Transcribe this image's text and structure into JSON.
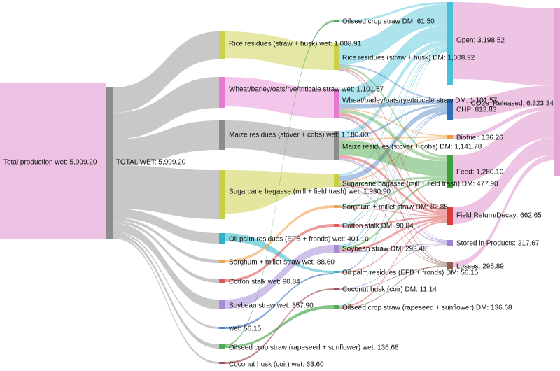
{
  "figure": {
    "background": "#ffffff"
  },
  "colors": {
    "pink_node": "#e5a8d6",
    "pink_link": "#edc1e3",
    "gray_node": "#8c8c8c",
    "gray_link": "#c8c8c8",
    "rice": "#ccd14c",
    "wheat": "#e878d2",
    "sugarcane": "#c9ce42",
    "oilpalm": "#2cb5c8",
    "sorghum": "#f0a355",
    "cotton": "#dd5a56",
    "soybean": "#a88cd8",
    "wet56": "#4d7fc4",
    "oilseed": "#52ab57",
    "coconut": "#a05252",
    "open": "#49c0d8",
    "chp": "#2e6fb7",
    "biofuel": "#f09a3c",
    "feed": "#3da23d",
    "field_return": "#d93e3e",
    "stored": "#a183d4",
    "losses": "#8e6052"
  },
  "labels": {
    "total_production": "Total production wet: 5,999.20",
    "total_wet": "TOTAL WET: 5,999.20",
    "rice_wet": "Rice residues (straw + husk) wet: 1,008.91",
    "wheat_wet": "Wheat/barley/oats/rye/triticale straw wet: 1,101.57",
    "maize_wet": "Maize residues (stover + cobs) wet: 1,180.00",
    "sugarcane_wet": "Sugarcane bagasse (mill + field trash) wet: 1,930.90",
    "oilpalm_wet": "Oil palm residues (EFB + fronds) wet: 401.10",
    "sorghum_wet": "Sorghum + millet straw wet: 88.60",
    "cotton_wet": "Cotton stalk wet: 90.84",
    "soybean_wet": "Soybean straw wet: 357.90",
    "wet56": "wet: 56.15",
    "oilseed_wet": "Oilseed crop straw (rapeseed + sunflower) wet: 136.68",
    "coconut_wet": "Coconut husk (coir) wet: 63.60",
    "oilseed_dm61": "Oilseed crop straw DM: 61.50",
    "rice_dm": "Rice residues (straw + husk) DM: 1,008.92",
    "wheat_dm": "Wheat/barley/oats/rye/triticale straw DM: 1,101.57",
    "maize_dm": "Maize residues (stover + cobs) DM: 1,141.78",
    "sugarcane_dm": "Sugarcane bagasse (mill + field trash) DM: 477.90",
    "sorghum_dm": "Sorghum + millet straw DM: 82.85",
    "cotton_dm": "Cotton stalk DM: 90.84",
    "soybean_dm": "Soybean straw DM: 293.48",
    "oilpalm_dm": "Oil palm residues (EFB + fronds) DM: 56.15",
    "coconut_dm": "Coconut husk (coir) DM: 11.14",
    "oilseed_dm136": "Oilseed crop straw (rapeseed + sunflower) DM: 136.68",
    "open": "Open: 3,198.52",
    "chp": "CHP: 813.83",
    "biofuel": "Biofuel: 136.26",
    "feed": "Feed: 1,280.10",
    "field_return": "Field Return/Decay: 662.65",
    "stored": "Stored in Products: 217.67",
    "losses": "Losses: 295.89",
    "co2e": "CO2e_Released: 6,323.34"
  },
  "chart_data": {
    "type": "sankey",
    "title": "",
    "nodes": [
      {
        "id": "total_production",
        "stage": 1,
        "label": "Total production wet",
        "value": 5999.2
      },
      {
        "id": "total_wet",
        "stage": 2,
        "label": "TOTAL WET",
        "value": 5999.2
      },
      {
        "id": "rice_wet",
        "stage": 3,
        "label": "Rice residues (straw + husk) wet",
        "value": 1008.91
      },
      {
        "id": "wheat_wet",
        "stage": 3,
        "label": "Wheat/barley/oats/rye/triticale straw wet",
        "value": 1101.57
      },
      {
        "id": "maize_wet",
        "stage": 3,
        "label": "Maize residues (stover + cobs) wet",
        "value": 1180.0
      },
      {
        "id": "sugarcane_wet",
        "stage": 3,
        "label": "Sugarcane bagasse (mill + field trash) wet",
        "value": 1930.9
      },
      {
        "id": "oilpalm_wet",
        "stage": 3,
        "label": "Oil palm residues (EFB + fronds) wet",
        "value": 401.1
      },
      {
        "id": "sorghum_wet",
        "stage": 3,
        "label": "Sorghum + millet straw wet",
        "value": 88.6
      },
      {
        "id": "cotton_wet",
        "stage": 3,
        "label": "Cotton stalk wet",
        "value": 90.84
      },
      {
        "id": "soybean_wet",
        "stage": 3,
        "label": "Soybean straw wet",
        "value": 357.9
      },
      {
        "id": "wet56",
        "stage": 3,
        "label": "wet",
        "value": 56.15
      },
      {
        "id": "oilseed_wet",
        "stage": 3,
        "label": "Oilseed crop straw (rapeseed + sunflower) wet",
        "value": 136.68
      },
      {
        "id": "coconut_wet",
        "stage": 3,
        "label": "Coconut husk (coir) wet",
        "value": 63.6
      },
      {
        "id": "oilseed_dm61",
        "stage": 4,
        "label": "Oilseed crop straw DM",
        "value": 61.5
      },
      {
        "id": "rice_dm",
        "stage": 4,
        "label": "Rice residues (straw + husk) DM",
        "value": 1008.92
      },
      {
        "id": "wheat_dm",
        "stage": 4,
        "label": "Wheat/barley/oats/rye/triticale straw DM",
        "value": 1101.57
      },
      {
        "id": "maize_dm",
        "stage": 4,
        "label": "Maize residues (stover + cobs) DM",
        "value": 1141.78
      },
      {
        "id": "sugarcane_dm",
        "stage": 4,
        "label": "Sugarcane bagasse (mill + field trash) DM",
        "value": 477.9
      },
      {
        "id": "sorghum_dm",
        "stage": 4,
        "label": "Sorghum + millet straw DM",
        "value": 82.85
      },
      {
        "id": "cotton_dm",
        "stage": 4,
        "label": "Cotton stalk DM",
        "value": 90.84
      },
      {
        "id": "soybean_dm",
        "stage": 4,
        "label": "Soybean straw DM",
        "value": 293.48
      },
      {
        "id": "oilpalm_dm",
        "stage": 4,
        "label": "Oil palm residues (EFB + fronds) DM",
        "value": 56.15
      },
      {
        "id": "coconut_dm",
        "stage": 4,
        "label": "Coconut husk (coir) DM",
        "value": 11.14
      },
      {
        "id": "oilseed_dm136",
        "stage": 4,
        "label": "Oilseed crop straw (rapeseed + sunflower) DM",
        "value": 136.68
      },
      {
        "id": "open",
        "stage": 5,
        "label": "Open",
        "value": 3198.52
      },
      {
        "id": "chp",
        "stage": 5,
        "label": "CHP",
        "value": 813.83
      },
      {
        "id": "biofuel",
        "stage": 5,
        "label": "Biofuel",
        "value": 136.26
      },
      {
        "id": "feed",
        "stage": 5,
        "label": "Feed",
        "value": 1280.1
      },
      {
        "id": "field_return",
        "stage": 5,
        "label": "Field Return/Decay",
        "value": 662.65
      },
      {
        "id": "stored",
        "stage": 5,
        "label": "Stored in Products",
        "value": 217.67
      },
      {
        "id": "losses",
        "stage": 5,
        "label": "Losses",
        "value": 295.89
      },
      {
        "id": "co2e",
        "stage": 6,
        "label": "CO2e_Released",
        "value": 6323.34
      }
    ],
    "links": [
      {
        "source": "total_production",
        "target": "total_wet"
      },
      {
        "source": "total_wet",
        "target": "rice_wet"
      },
      {
        "source": "total_wet",
        "target": "wheat_wet"
      },
      {
        "source": "total_wet",
        "target": "maize_wet"
      },
      {
        "source": "total_wet",
        "target": "sugarcane_wet"
      },
      {
        "source": "total_wet",
        "target": "oilpalm_wet"
      },
      {
        "source": "total_wet",
        "target": "sorghum_wet"
      },
      {
        "source": "total_wet",
        "target": "cotton_wet"
      },
      {
        "source": "total_wet",
        "target": "soybean_wet"
      },
      {
        "source": "total_wet",
        "target": "wet56"
      },
      {
        "source": "total_wet",
        "target": "oilseed_wet"
      },
      {
        "source": "total_wet",
        "target": "coconut_wet"
      },
      {
        "source": "rice_wet",
        "target": "rice_dm"
      },
      {
        "source": "wheat_wet",
        "target": "wheat_dm"
      },
      {
        "source": "maize_wet",
        "target": "maize_dm"
      },
      {
        "source": "sugarcane_wet",
        "target": "sugarcane_dm"
      },
      {
        "source": "oilpalm_wet",
        "target": "oilpalm_dm"
      },
      {
        "source": "sorghum_wet",
        "target": "sorghum_dm"
      },
      {
        "source": "cotton_wet",
        "target": "cotton_dm"
      },
      {
        "source": "soybean_wet",
        "target": "soybean_dm"
      },
      {
        "source": "wet56",
        "target": "oilpalm_dm"
      },
      {
        "source": "oilseed_wet",
        "target": "oilseed_dm61"
      },
      {
        "source": "oilseed_wet",
        "target": "oilseed_dm136"
      },
      {
        "source": "coconut_wet",
        "target": "coconut_dm"
      },
      {
        "source": "oilseed_dm61",
        "target": "open"
      },
      {
        "source": "rice_dm",
        "target": "open"
      },
      {
        "source": "wheat_dm",
        "target": "open"
      },
      {
        "source": "maize_dm",
        "target": "open"
      },
      {
        "source": "sugarcane_dm",
        "target": "open"
      },
      {
        "source": "sorghum_dm",
        "target": "open"
      },
      {
        "source": "cotton_dm",
        "target": "open"
      },
      {
        "source": "soybean_dm",
        "target": "open"
      },
      {
        "source": "oilseed_dm136",
        "target": "open"
      },
      {
        "source": "rice_dm",
        "target": "chp"
      },
      {
        "source": "wheat_dm",
        "target": "chp"
      },
      {
        "source": "maize_dm",
        "target": "chp"
      },
      {
        "source": "sugarcane_dm",
        "target": "chp"
      },
      {
        "source": "cotton_dm",
        "target": "chp"
      },
      {
        "source": "soybean_dm",
        "target": "chp"
      },
      {
        "source": "oilpalm_dm",
        "target": "chp"
      },
      {
        "source": "wheat_dm",
        "target": "biofuel"
      },
      {
        "source": "maize_dm",
        "target": "biofuel"
      },
      {
        "source": "sugarcane_dm",
        "target": "biofuel"
      },
      {
        "source": "rice_dm",
        "target": "feed"
      },
      {
        "source": "wheat_dm",
        "target": "feed"
      },
      {
        "source": "maize_dm",
        "target": "feed"
      },
      {
        "source": "sugarcane_dm",
        "target": "feed"
      },
      {
        "source": "sorghum_dm",
        "target": "feed"
      },
      {
        "source": "soybean_dm",
        "target": "feed"
      },
      {
        "source": "rice_dm",
        "target": "field_return"
      },
      {
        "source": "wheat_dm",
        "target": "field_return"
      },
      {
        "source": "maize_dm",
        "target": "field_return"
      },
      {
        "source": "sugarcane_dm",
        "target": "field_return"
      },
      {
        "source": "sorghum_dm",
        "target": "field_return"
      },
      {
        "source": "cotton_dm",
        "target": "field_return"
      },
      {
        "source": "soybean_dm",
        "target": "field_return"
      },
      {
        "source": "oilpalm_dm",
        "target": "field_return"
      },
      {
        "source": "oilseed_dm136",
        "target": "field_return"
      },
      {
        "source": "rice_dm",
        "target": "stored"
      },
      {
        "source": "wheat_dm",
        "target": "stored"
      },
      {
        "source": "maize_dm",
        "target": "stored"
      },
      {
        "source": "soybean_dm",
        "target": "stored"
      },
      {
        "source": "coconut_dm",
        "target": "stored"
      },
      {
        "source": "rice_dm",
        "target": "losses"
      },
      {
        "source": "wheat_dm",
        "target": "losses"
      },
      {
        "source": "maize_dm",
        "target": "losses"
      },
      {
        "source": "sugarcane_dm",
        "target": "losses"
      },
      {
        "source": "oilseed_dm136",
        "target": "losses"
      },
      {
        "source": "coconut_dm",
        "target": "losses"
      },
      {
        "source": "open",
        "target": "co2e"
      },
      {
        "source": "chp",
        "target": "co2e"
      },
      {
        "source": "biofuel",
        "target": "co2e"
      },
      {
        "source": "feed",
        "target": "co2e"
      },
      {
        "source": "field_return",
        "target": "co2e"
      },
      {
        "source": "losses",
        "target": "co2e"
      }
    ]
  }
}
